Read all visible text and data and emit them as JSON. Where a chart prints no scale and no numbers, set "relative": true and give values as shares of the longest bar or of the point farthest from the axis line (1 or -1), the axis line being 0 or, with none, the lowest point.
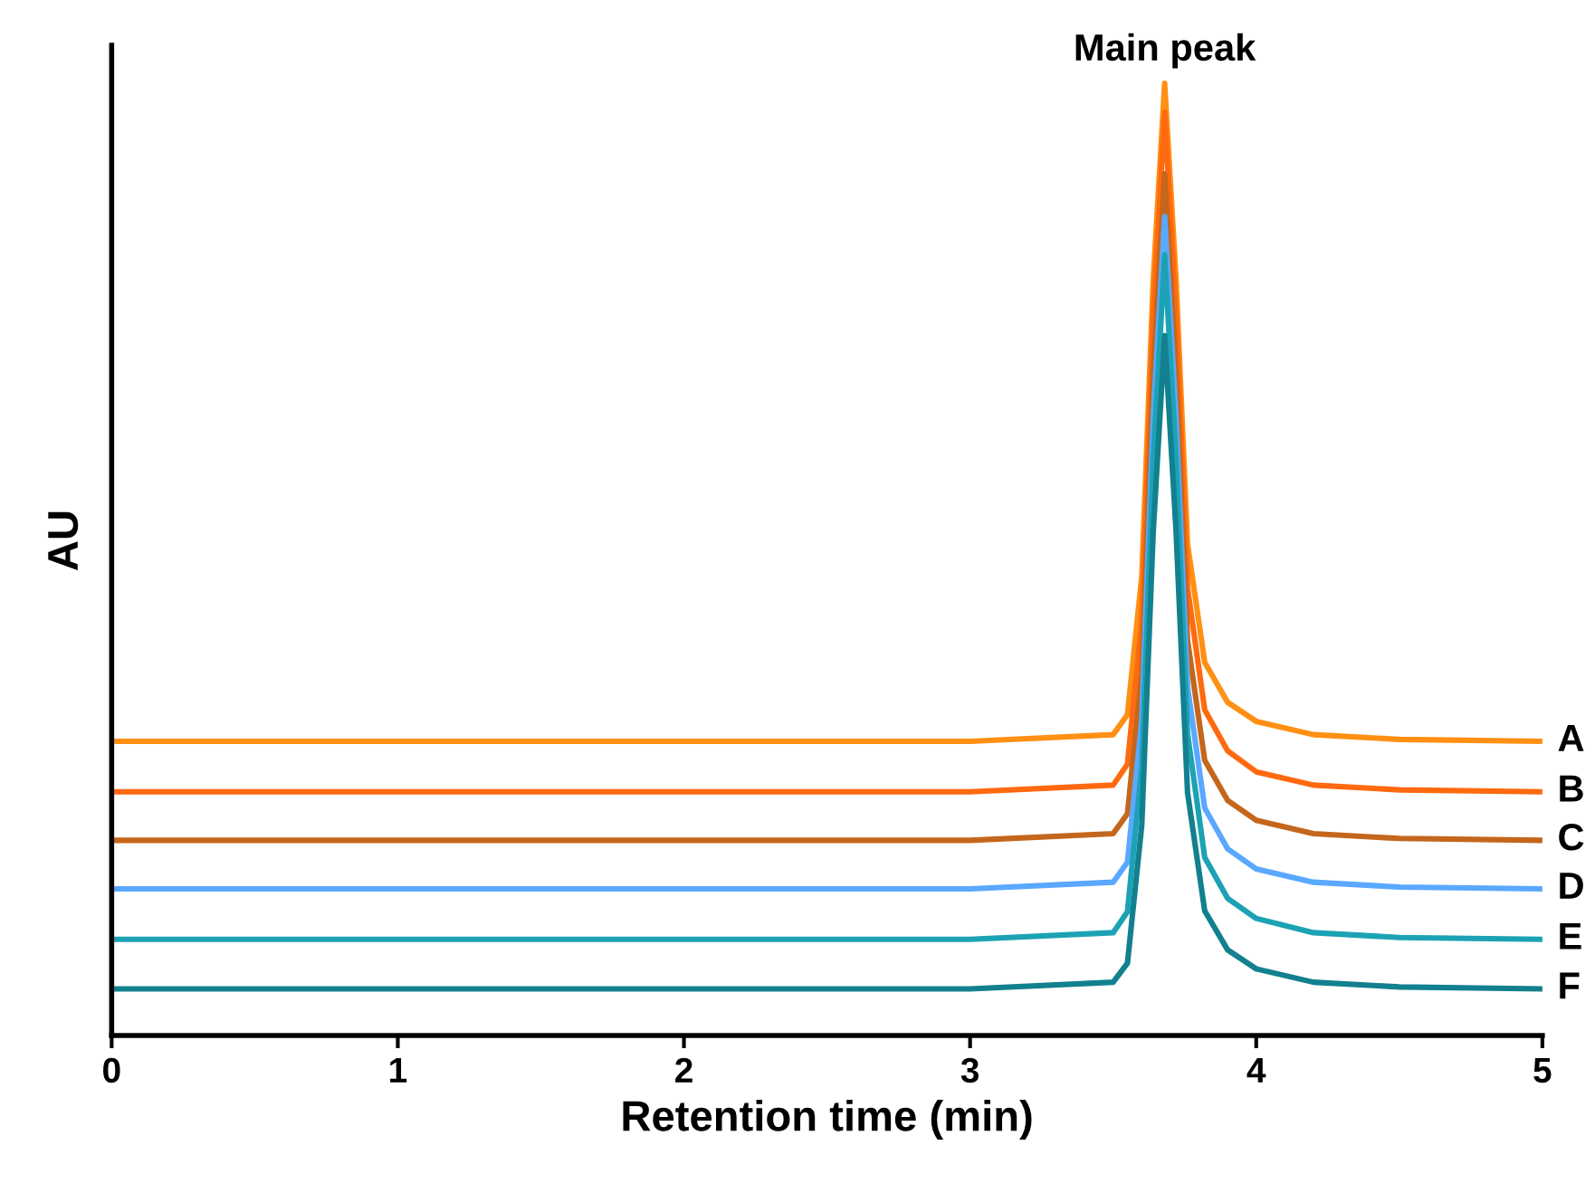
{
  "chart_data": {
    "type": "line",
    "relative": true,
    "xlabel": "Retention time (min)",
    "ylabel": "AU",
    "xlim": [
      0,
      5
    ],
    "xticks": [
      0,
      1,
      2,
      3,
      4,
      5
    ],
    "grid": false,
    "legend": false,
    "marker": "none",
    "line_style": "solid",
    "annotations": [
      {
        "text": "Main peak",
        "x": 3.68,
        "y": 1.0
      }
    ],
    "x": [
      0,
      3,
      3.5,
      3.55,
      3.6,
      3.64,
      3.68,
      3.72,
      3.76,
      3.82,
      3.9,
      4.0,
      4.2,
      4.5,
      5
    ],
    "series": [
      {
        "name": "A",
        "color": "#ff9014",
        "values": [
          0.309,
          0.309,
          0.316,
          0.337,
          0.482,
          0.793,
          1.0,
          0.793,
          0.516,
          0.392,
          0.35,
          0.33,
          0.316,
          0.311,
          0.309
        ]
      },
      {
        "name": "B",
        "color": "#ff6a10",
        "values": [
          0.256,
          0.256,
          0.263,
          0.285,
          0.435,
          0.756,
          0.97,
          0.756,
          0.47,
          0.342,
          0.299,
          0.277,
          0.263,
          0.258,
          0.256
        ]
      },
      {
        "name": "C",
        "color": "#c4661c",
        "values": [
          0.205,
          0.205,
          0.212,
          0.233,
          0.38,
          0.695,
          0.905,
          0.695,
          0.415,
          0.289,
          0.247,
          0.226,
          0.212,
          0.207,
          0.205
        ]
      },
      {
        "name": "D",
        "color": "#5aa8ff",
        "values": [
          0.154,
          0.154,
          0.161,
          0.182,
          0.331,
          0.648,
          0.86,
          0.648,
          0.366,
          0.239,
          0.196,
          0.175,
          0.161,
          0.156,
          0.154
        ]
      },
      {
        "name": "E",
        "color": "#1ca2b4",
        "values": [
          0.101,
          0.101,
          0.108,
          0.13,
          0.281,
          0.604,
          0.82,
          0.604,
          0.317,
          0.187,
          0.144,
          0.123,
          0.108,
          0.103,
          0.101
        ]
      },
      {
        "name": "F",
        "color": "#12808f",
        "values": [
          0.049,
          0.049,
          0.056,
          0.076,
          0.221,
          0.529,
          0.735,
          0.529,
          0.255,
          0.131,
          0.09,
          0.07,
          0.056,
          0.051,
          0.049
        ]
      }
    ]
  }
}
